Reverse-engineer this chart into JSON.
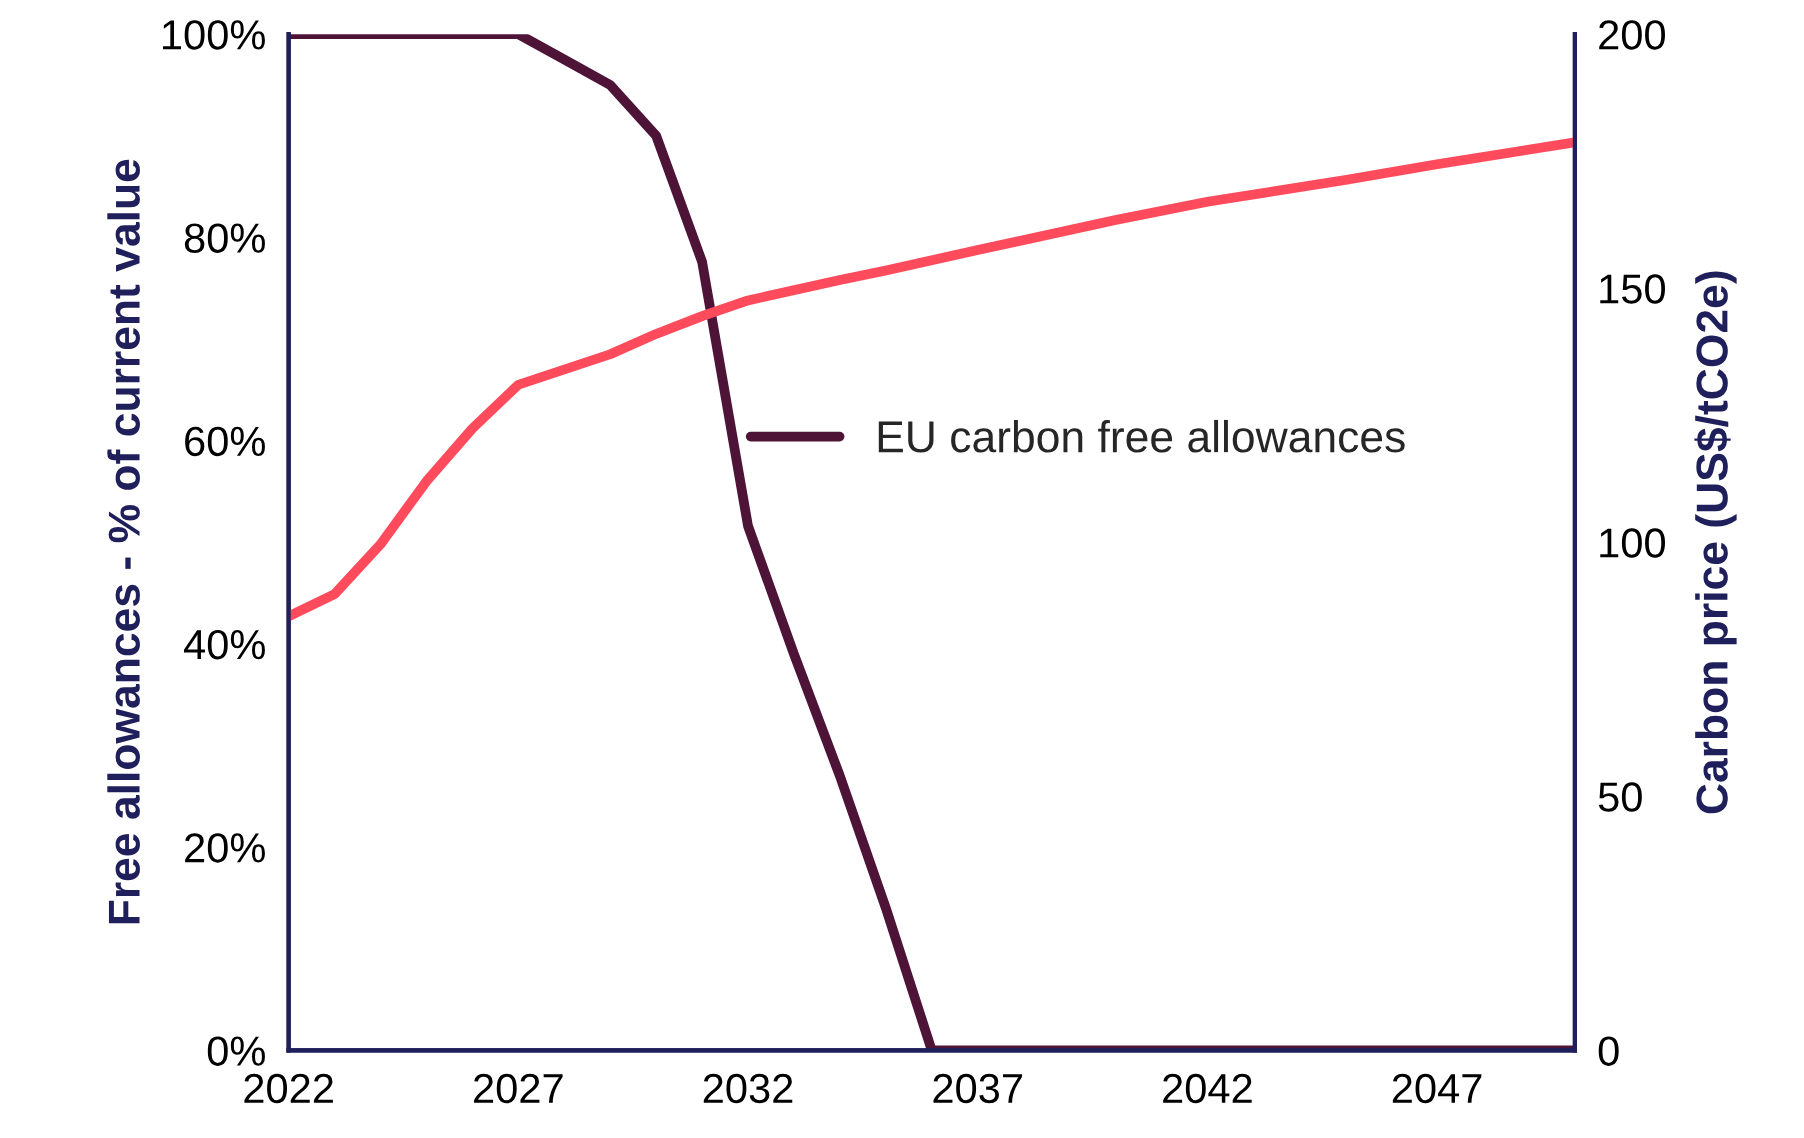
{
  "chart_data": {
    "type": "line",
    "ylabel": "Free allowances - % of current value",
    "y2label": "Carbon price (US$/tCO2e)",
    "xlim": [
      2022,
      2050
    ],
    "xticks": [
      2022,
      2027,
      2032,
      2037,
      2042,
      2047
    ],
    "ylim": [
      0,
      100
    ],
    "yticks": [
      {
        "value": 0,
        "label": "0%"
      },
      {
        "value": 20,
        "label": "20%"
      },
      {
        "value": 40,
        "label": "40%"
      },
      {
        "value": 60,
        "label": "60%"
      },
      {
        "value": 80,
        "label": "80%"
      },
      {
        "value": 100,
        "label": "100%"
      }
    ],
    "y2lim": [
      0,
      200
    ],
    "y2ticks": [
      0,
      50,
      100,
      150,
      200
    ],
    "grid": false,
    "legend": "center right",
    "line_style": "solid",
    "marker": "none",
    "series": [
      {
        "name": "EU carbon free allowances",
        "color": "#4e1438",
        "x": [
          2022,
          2023,
          2024,
          2025,
          2026,
          2027,
          2028,
          2029,
          2030,
          2031,
          2032,
          2033,
          2034,
          2035,
          2036,
          2037,
          2040,
          2045,
          2050
        ],
        "values": [
          100,
          100,
          100,
          100,
          100,
          100,
          97.5,
          95,
          90,
          77.6,
          51.6,
          39,
          27,
          14,
          0,
          0,
          0,
          0,
          0
        ]
      },
      {
        "color": "#ff4b5c",
        "axis": "y2",
        "x": [
          2022,
          2023,
          2024,
          2025,
          2026,
          2027,
          2028,
          2029,
          2030,
          2031,
          2032,
          2034,
          2035,
          2037,
          2040,
          2042,
          2045,
          2047,
          2050
        ],
        "values": [
          85.4,
          89.8,
          99.6,
          112,
          122.4,
          131,
          134,
          137,
          141,
          144.5,
          147.6,
          151.6,
          153.5,
          157.5,
          163.4,
          167,
          171.3,
          174.4,
          178.7
        ]
      }
    ]
  }
}
